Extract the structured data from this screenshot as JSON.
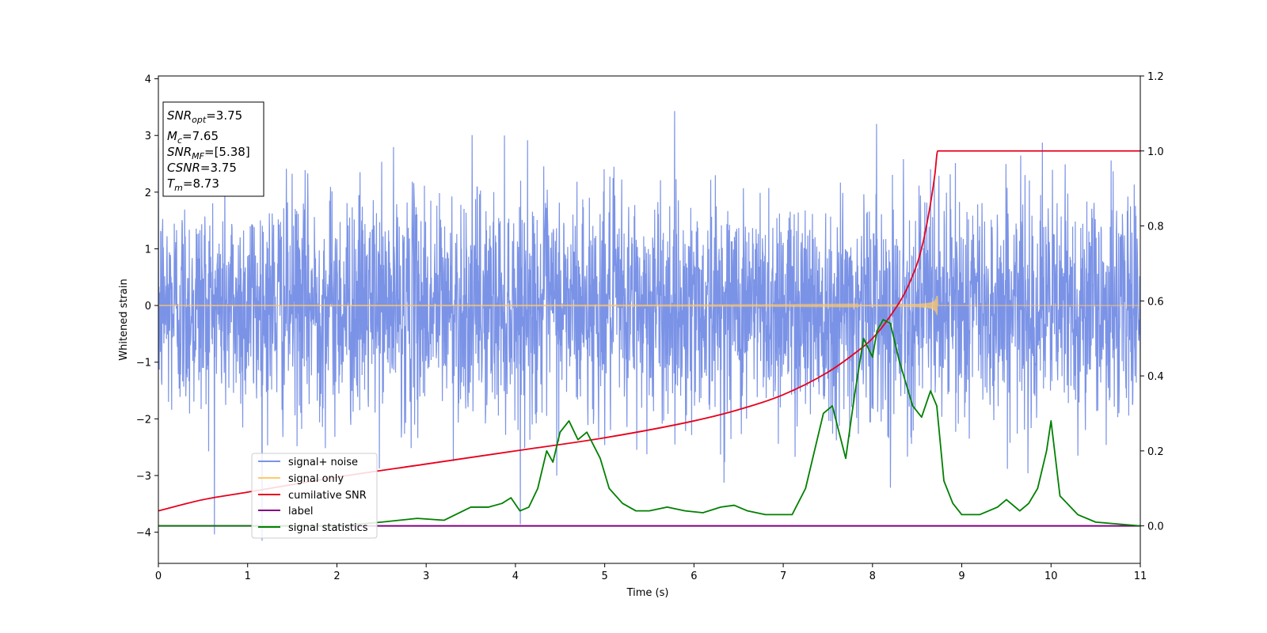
{
  "chart_data": {
    "type": "line",
    "xlabel": "Time (s)",
    "ylabel": "Whitened strain",
    "xlim": [
      0,
      11
    ],
    "ylim": [
      -4.55,
      4.05
    ],
    "y2lim": [
      -0.1,
      1.2
    ],
    "x_ticks": [
      0,
      1,
      2,
      3,
      4,
      5,
      6,
      7,
      8,
      9,
      10,
      11
    ],
    "y_ticks": [
      4,
      3,
      2,
      1,
      0,
      -1,
      -2,
      -3,
      -4
    ],
    "y_tick_labels": [
      "4",
      "3",
      "2",
      "1",
      "0",
      "−1",
      "−2",
      "−3",
      "−4"
    ],
    "y2_ticks": [
      1.2,
      1.0,
      0.8,
      0.6,
      0.4,
      0.2,
      0.0
    ],
    "y2_tick_labels": [
      "1.2",
      "1.0",
      "0.8",
      "0.6",
      "0.4",
      "0.2",
      "0.0"
    ],
    "grid": false,
    "legend_position": "lower-left",
    "annotation": {
      "snr_opt": "3.75",
      "mc": "7.65",
      "snr_mf": "[5.38]",
      "csnr": "3.75",
      "tm": "8.73"
    },
    "series": [
      {
        "name": "signal+ noise",
        "color": "#7b93e6",
        "axis": "left",
        "kind": "noise",
        "noise_sigma": 1.0,
        "x_range": [
          0,
          11
        ]
      },
      {
        "name": "signal only",
        "color": "#ffc86b",
        "axis": "left",
        "kind": "chirp",
        "merger_time": 8.73,
        "peak_amplitude": 0.42
      },
      {
        "name": "cumilative SNR",
        "color": "#e8001c",
        "axis": "right",
        "x": [
          0,
          0.5,
          1,
          2,
          3,
          4,
          5,
          6,
          6.5,
          7,
          7.5,
          7.8,
          8,
          8.2,
          8.4,
          8.55,
          8.65,
          8.7,
          8.73,
          11
        ],
        "y": [
          0.04,
          0.07,
          0.09,
          0.13,
          0.165,
          0.2,
          0.235,
          0.28,
          0.31,
          0.35,
          0.41,
          0.46,
          0.5,
          0.56,
          0.64,
          0.74,
          0.86,
          0.94,
          1.0,
          1.0
        ]
      },
      {
        "name": "label",
        "color": "#800080",
        "axis": "right",
        "x": [
          0,
          11
        ],
        "y": [
          0,
          0
        ]
      },
      {
        "name": "signal statistics",
        "color": "#008000",
        "axis": "right",
        "x": [
          0,
          0.5,
          1,
          1.5,
          2,
          2.5,
          2.9,
          3.2,
          3.5,
          3.7,
          3.85,
          3.95,
          4.05,
          4.15,
          4.25,
          4.35,
          4.42,
          4.5,
          4.6,
          4.7,
          4.8,
          4.95,
          5.05,
          5.2,
          5.35,
          5.5,
          5.7,
          5.9,
          6.1,
          6.3,
          6.45,
          6.6,
          6.8,
          7.0,
          7.1,
          7.25,
          7.45,
          7.55,
          7.7,
          7.8,
          7.9,
          8.0,
          8.05,
          8.12,
          8.2,
          8.3,
          8.45,
          8.55,
          8.65,
          8.72,
          8.8,
          8.9,
          9.0,
          9.2,
          9.4,
          9.5,
          9.65,
          9.75,
          9.85,
          9.95,
          10.0,
          10.1,
          10.3,
          10.5,
          11.0
        ],
        "y": [
          0.0,
          0.0,
          0.0,
          0.0,
          0.0,
          0.01,
          0.02,
          0.015,
          0.05,
          0.05,
          0.06,
          0.075,
          0.04,
          0.05,
          0.1,
          0.2,
          0.17,
          0.25,
          0.28,
          0.23,
          0.25,
          0.18,
          0.1,
          0.06,
          0.04,
          0.04,
          0.05,
          0.04,
          0.035,
          0.05,
          0.055,
          0.04,
          0.03,
          0.03,
          0.03,
          0.1,
          0.3,
          0.32,
          0.18,
          0.35,
          0.5,
          0.45,
          0.52,
          0.55,
          0.54,
          0.44,
          0.32,
          0.29,
          0.36,
          0.32,
          0.12,
          0.06,
          0.03,
          0.03,
          0.05,
          0.07,
          0.04,
          0.06,
          0.1,
          0.2,
          0.28,
          0.08,
          0.03,
          0.01,
          0.0
        ]
      }
    ]
  }
}
